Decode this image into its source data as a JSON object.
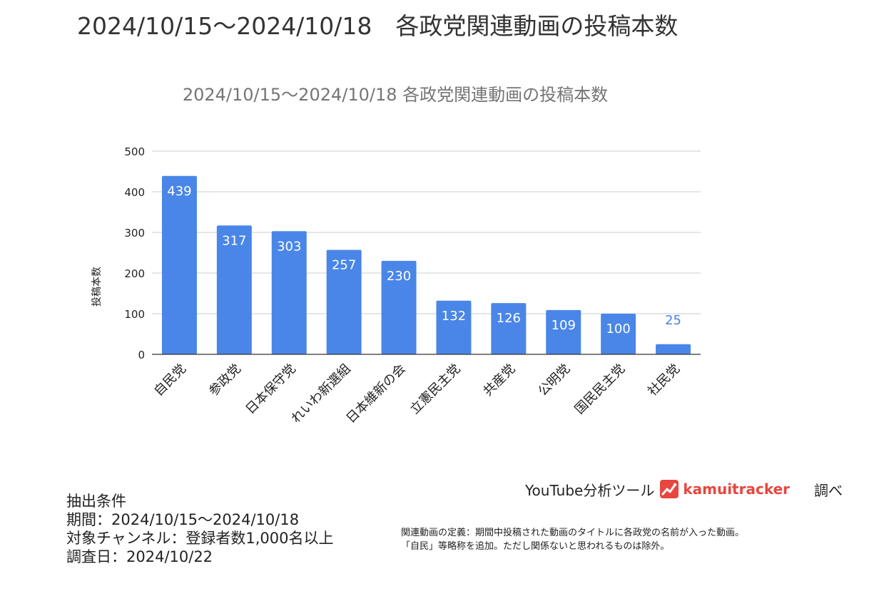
{
  "page_title": "2024/10/15～2024/10/18　各政党関連動画の投稿本数",
  "chart_data": {
    "type": "bar",
    "title": "2024/10/15～2024/10/18  各政党関連動画の投稿本数",
    "xlabel": "",
    "ylabel": "投稿本数",
    "categories": [
      "自民党",
      "参政党",
      "日本保守党",
      "れいわ新選組",
      "日本維新の会",
      "立憲民主党",
      "共産党",
      "公明党",
      "国民民主党",
      "社民党"
    ],
    "values": [
      439,
      317,
      303,
      257,
      230,
      132,
      126,
      109,
      100,
      25
    ],
    "yticks": [
      0,
      100,
      200,
      300,
      400,
      500
    ],
    "ylim": [
      0,
      500
    ],
    "grid": true,
    "legend": "none",
    "bar_color": "#4a86e8",
    "label_color_inside": "#ffffff",
    "label_color_outside": "#4a86e8"
  },
  "footer": {
    "conditions": [
      "抽出条件",
      "期間：2024/10/15～2024/10/18",
      "対象チャンネル：登録者数1,000名以上",
      "調査日：2024/10/22"
    ],
    "brand_prefix": "YouTube分析ツール",
    "brand_name": "kamuitracker",
    "brand_suffix": "調べ",
    "brand_color": "#e8463f",
    "note_lines": [
      "関連動画の定義：期間中投稿された動画のタイトルに各政党の名前が入った動画。",
      "「自民」等略称を追加。ただし関係ないと思われるものは除外。"
    ]
  }
}
